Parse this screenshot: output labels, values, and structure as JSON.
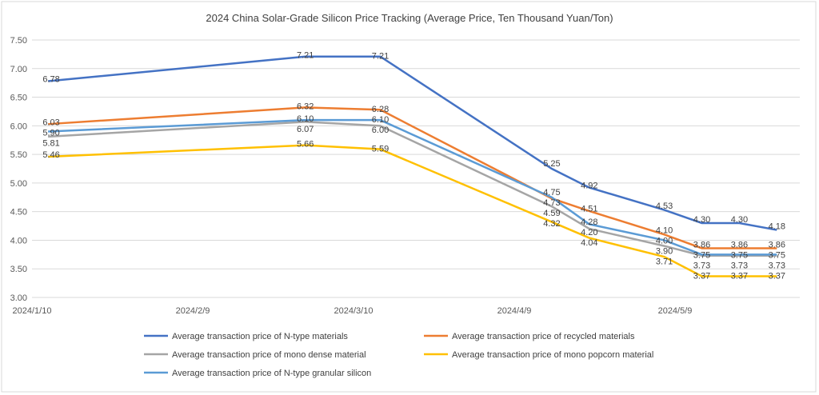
{
  "chart_data": {
    "type": "line",
    "title": "2024 China Solar-Grade Silicon Price Tracking (Average Price, Ten Thousand Yuan/Ton)",
    "xlabel": "",
    "ylabel": "",
    "ylim": [
      3.0,
      7.5
    ],
    "yticks": [
      "3.00",
      "3.50",
      "4.00",
      "4.50",
      "5.00",
      "5.50",
      "6.00",
      "6.50",
      "7.00",
      "7.50"
    ],
    "xticks": [
      "2024/1/10",
      "2024/2/9",
      "2024/3/10",
      "2024/4/9",
      "2024/5/9"
    ],
    "x_day_offsets": [
      3,
      51,
      65,
      97,
      104,
      118,
      125,
      132,
      139
    ],
    "grid": true,
    "legend_position": "bottom",
    "series": [
      {
        "name": "Average transaction price of N-type materials",
        "color": "#4472C4",
        "values": [
          6.78,
          7.21,
          7.21,
          5.25,
          4.92,
          4.53,
          4.3,
          4.3,
          4.18
        ]
      },
      {
        "name": "Average transaction price of recycled materials",
        "color": "#ED7D31",
        "values": [
          6.03,
          6.32,
          6.28,
          4.73,
          4.51,
          4.1,
          3.86,
          3.86,
          3.86
        ]
      },
      {
        "name": "Average transaction price of mono dense material",
        "color": "#A5A5A5",
        "values": [
          5.81,
          6.07,
          6.0,
          4.59,
          4.2,
          3.9,
          3.73,
          3.73,
          3.73
        ]
      },
      {
        "name": "Average transaction price of mono popcorn material",
        "color": "#FFC000",
        "values": [
          5.46,
          5.66,
          5.59,
          4.32,
          4.04,
          3.71,
          3.37,
          3.37,
          3.37
        ]
      },
      {
        "name": "Average transaction price of N-type granular silicon",
        "color": "#5B9BD5",
        "values": [
          5.9,
          6.1,
          6.1,
          4.75,
          4.28,
          4.0,
          3.75,
          3.75,
          3.75
        ]
      }
    ]
  }
}
